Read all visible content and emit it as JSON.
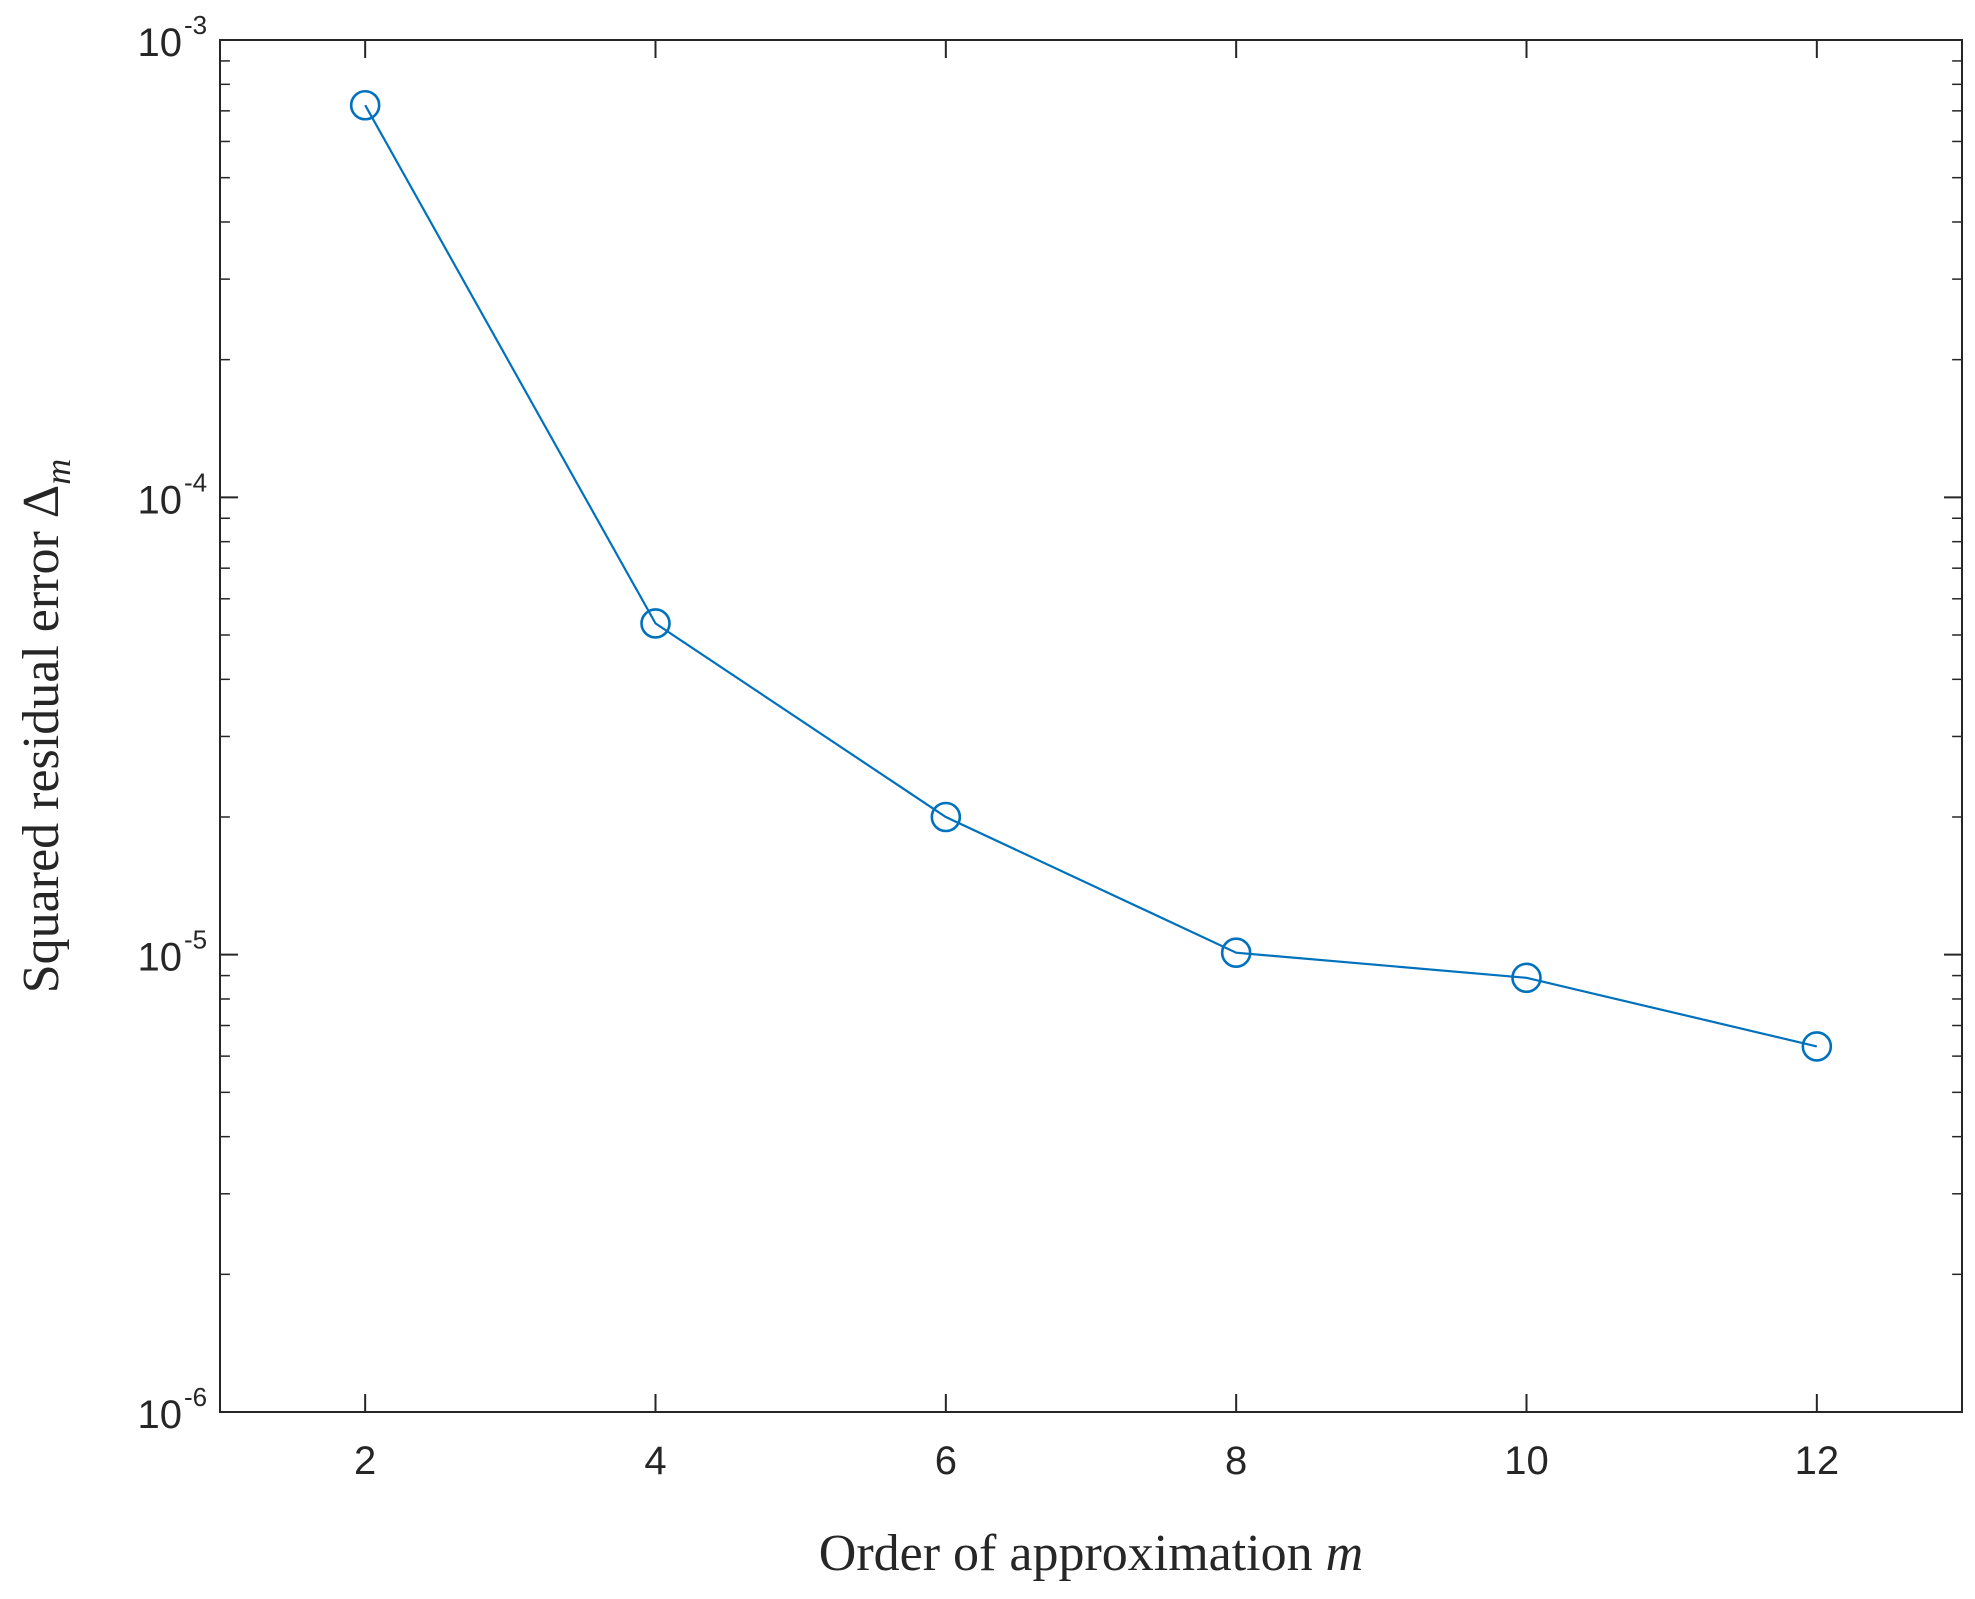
{
  "chart_data": {
    "type": "line",
    "xlabel": "Order of approximation",
    "xlabel_var": "m",
    "ylabel": "Squared residual error",
    "ylabel_symbol": "Δ",
    "ylabel_subscript": "m",
    "x_scale": "linear",
    "y_scale": "log",
    "xlim": [
      1,
      13
    ],
    "ylim": [
      1e-06,
      0.001
    ],
    "x_ticks": [
      2,
      4,
      6,
      8,
      10,
      12
    ],
    "x_tick_labels": [
      "2",
      "4",
      "6",
      "8",
      "10",
      "12"
    ],
    "y_ticks": [
      1e-06,
      1e-05,
      0.0001,
      0.001
    ],
    "y_tick_labels": [
      {
        "base": "10",
        "exp": "-6"
      },
      {
        "base": "10",
        "exp": "-5"
      },
      {
        "base": "10",
        "exp": "-4"
      },
      {
        "base": "10",
        "exp": "-3"
      }
    ],
    "grid": false,
    "series": [
      {
        "color": "#0072BD",
        "marker": "circle",
        "x": [
          2,
          4,
          6,
          8,
          10,
          12
        ],
        "y": [
          0.00072,
          5.3e-05,
          2e-05,
          1.01e-05,
          8.9e-06,
          6.3e-06
        ]
      }
    ]
  }
}
